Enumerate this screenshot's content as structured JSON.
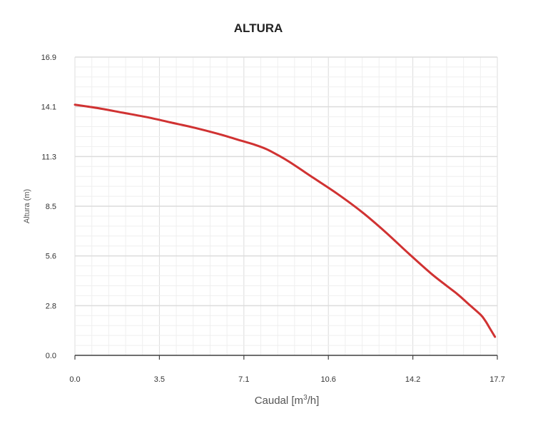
{
  "chart_data": {
    "type": "line",
    "title": "ALTURA",
    "xlabel": {
      "base": "Caudal [m",
      "sup": "3",
      "tail": "/h]"
    },
    "ylabel": "Altura (m)",
    "xlim": [
      0,
      17.7
    ],
    "ylim": [
      0,
      16.9
    ],
    "x_ticks": [
      "0.0",
      "3.5",
      "7.1",
      "10.6",
      "14.2",
      "17.7"
    ],
    "y_ticks": [
      "0.0",
      "2.8",
      "5.6",
      "8.5",
      "11.3",
      "14.1",
      "16.9"
    ],
    "grid": true,
    "series": [
      {
        "color": "#d03232",
        "x": [
          0,
          1,
          2,
          3,
          4,
          5,
          6,
          7,
          7.5,
          8,
          8.5,
          9,
          10,
          11,
          12,
          13,
          14,
          15,
          16,
          16.5,
          17,
          17.2,
          17.4,
          17.6
        ],
        "y": [
          14.2,
          14.0,
          13.75,
          13.5,
          13.2,
          12.9,
          12.55,
          12.15,
          11.95,
          11.7,
          11.35,
          10.95,
          10.05,
          9.15,
          8.15,
          7.0,
          5.75,
          4.55,
          3.5,
          2.9,
          2.3,
          1.95,
          1.5,
          1.05
        ]
      }
    ]
  }
}
